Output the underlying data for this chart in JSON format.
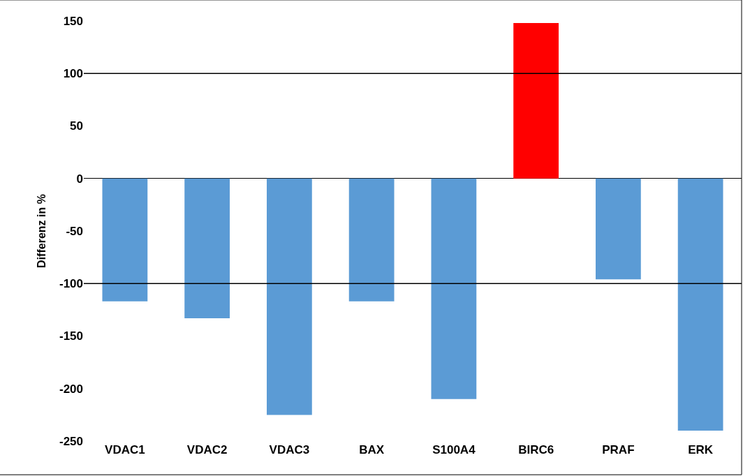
{
  "chart_data": {
    "type": "bar",
    "ylabel": "Differenz in %",
    "categories": [
      "VDAC1",
      "VDAC2",
      "VDAC3",
      "BAX",
      "S100A4",
      "BIRC6",
      "PRAF",
      "ERK"
    ],
    "values": [
      -117,
      -133,
      -225,
      -117,
      -210,
      148,
      -96,
      -240
    ],
    "colors": [
      "#5b9bd5",
      "#5b9bd5",
      "#5b9bd5",
      "#5b9bd5",
      "#5b9bd5",
      "#ff0000",
      "#5b9bd5",
      "#5b9bd5"
    ],
    "ylim": [
      -250,
      150
    ],
    "yticks": [
      -250,
      -200,
      -150,
      -100,
      -50,
      0,
      50,
      100,
      150
    ],
    "ref_lines": [
      {
        "axis": "y",
        "value": 100,
        "color": "#000000"
      },
      {
        "axis": "y",
        "value": -100,
        "color": "#000000"
      }
    ],
    "grid": false
  }
}
